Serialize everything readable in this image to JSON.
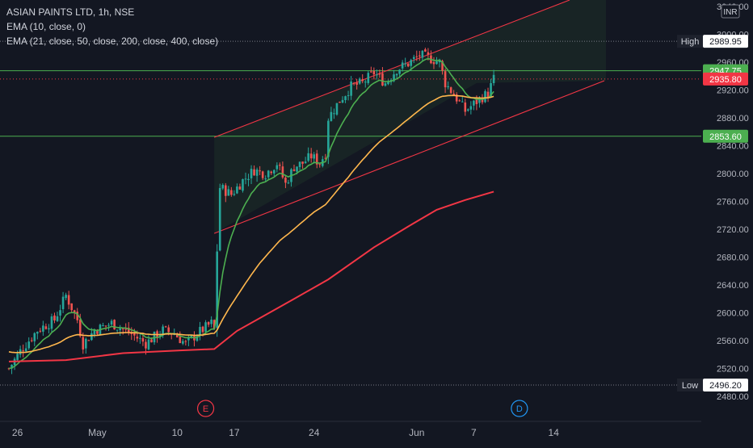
{
  "chart_data": {
    "type": "candlestick",
    "title": "ASIAN PAINTS LTD, 1h, NSE",
    "indicators": [
      "EMA (10, close, 0)",
      "EMA (21, close, 50, close, 200, close, 400, close)"
    ],
    "currency": "INR",
    "grid": false,
    "x_ticks": [
      "26",
      "May",
      "10",
      "17",
      "24",
      "Jun",
      "7",
      "14"
    ],
    "y_ticks": [
      2480,
      2520,
      2560,
      2600,
      2640,
      2680,
      2720,
      2760,
      2800,
      2840,
      2880,
      2920,
      2960,
      3000,
      3040
    ],
    "y_tick_labels": [
      "2480.00",
      "2520.00",
      "2560.00",
      "2600.00",
      "2640.00",
      "2680.00",
      "2720.00",
      "2760.00",
      "2800.00",
      "2840.00",
      "2880.00",
      "2920.00",
      "2960.00",
      "3000.00",
      "3040.00"
    ],
    "ylim": [
      2472,
      3046
    ],
    "price_labels": [
      {
        "text": "High",
        "value": "2989.95",
        "price": 2989.95,
        "style": "dark"
      },
      {
        "text": "",
        "value": "2947.75",
        "price": 2947.75,
        "style": "green"
      },
      {
        "text": "",
        "value": "2935.80",
        "price": 2935.8,
        "style": "red"
      },
      {
        "text": "",
        "value": "2853.60",
        "price": 2853.6,
        "style": "green"
      },
      {
        "text": "Low",
        "value": "2496.20",
        "price": 2496.2,
        "style": "dark"
      }
    ],
    "horizontal_lines": [
      {
        "price": 2947.75,
        "color": "#4caf50"
      },
      {
        "price": 2853.6,
        "color": "#4caf50"
      }
    ],
    "event_markers": [
      {
        "label": "E",
        "color": "#f23645"
      },
      {
        "label": "D",
        "color": "#2196f3"
      }
    ],
    "series_colors": {
      "up": "#26a69a",
      "down": "#ef5350",
      "ema10": "#4caf50",
      "ema50": "#ffb74d",
      "ema400": "#f23645",
      "channel": "#f23645"
    },
    "waypoints": [
      [
        0,
        2520
      ],
      [
        4,
        2545
      ],
      [
        10,
        2575
      ],
      [
        16,
        2590
      ],
      [
        20,
        2625
      ],
      [
        24,
        2590
      ],
      [
        26,
        2555
      ],
      [
        30,
        2575
      ],
      [
        36,
        2585
      ],
      [
        42,
        2572
      ],
      [
        48,
        2556
      ],
      [
        54,
        2575
      ],
      [
        58,
        2570
      ],
      [
        62,
        2555
      ],
      [
        66,
        2570
      ],
      [
        71,
        2585
      ],
      [
        72,
        2575
      ],
      [
        73,
        2690
      ],
      [
        74,
        2780
      ],
      [
        78,
        2770
      ],
      [
        82,
        2790
      ],
      [
        86,
        2805
      ],
      [
        90,
        2800
      ],
      [
        94,
        2815
      ],
      [
        97,
        2785
      ],
      [
        100,
        2810
      ],
      [
        103,
        2815
      ],
      [
        106,
        2825
      ],
      [
        109,
        2815
      ],
      [
        111,
        2830
      ],
      [
        112,
        2880
      ],
      [
        116,
        2905
      ],
      [
        120,
        2925
      ],
      [
        124,
        2930
      ],
      [
        128,
        2945
      ],
      [
        132,
        2930
      ],
      [
        136,
        2950
      ],
      [
        140,
        2958
      ],
      [
        144,
        2970
      ],
      [
        148,
        2965
      ],
      [
        151,
        2960
      ],
      [
        153,
        2930
      ],
      [
        157,
        2908
      ],
      [
        160,
        2890
      ],
      [
        163,
        2900
      ],
      [
        166,
        2910
      ],
      [
        168,
        2915
      ],
      [
        170,
        2936
      ]
    ],
    "trendlines": [
      {
        "from": [
          72,
          2852
        ],
        "to": [
          164,
          3050
        ],
        "role": "channel-upper"
      },
      {
        "from": [
          72,
          2714
        ],
        "to": [
          164,
          2930
        ],
        "role": "channel-lower"
      }
    ],
    "date_index": {
      "26": 3,
      "May": 31,
      "10": 59,
      "17": 79,
      "24": 107,
      "Jun": 143,
      "7": 163,
      "14": 191
    },
    "event_index": {
      "E": 69,
      "D": 179
    },
    "n_candles": 171
  }
}
